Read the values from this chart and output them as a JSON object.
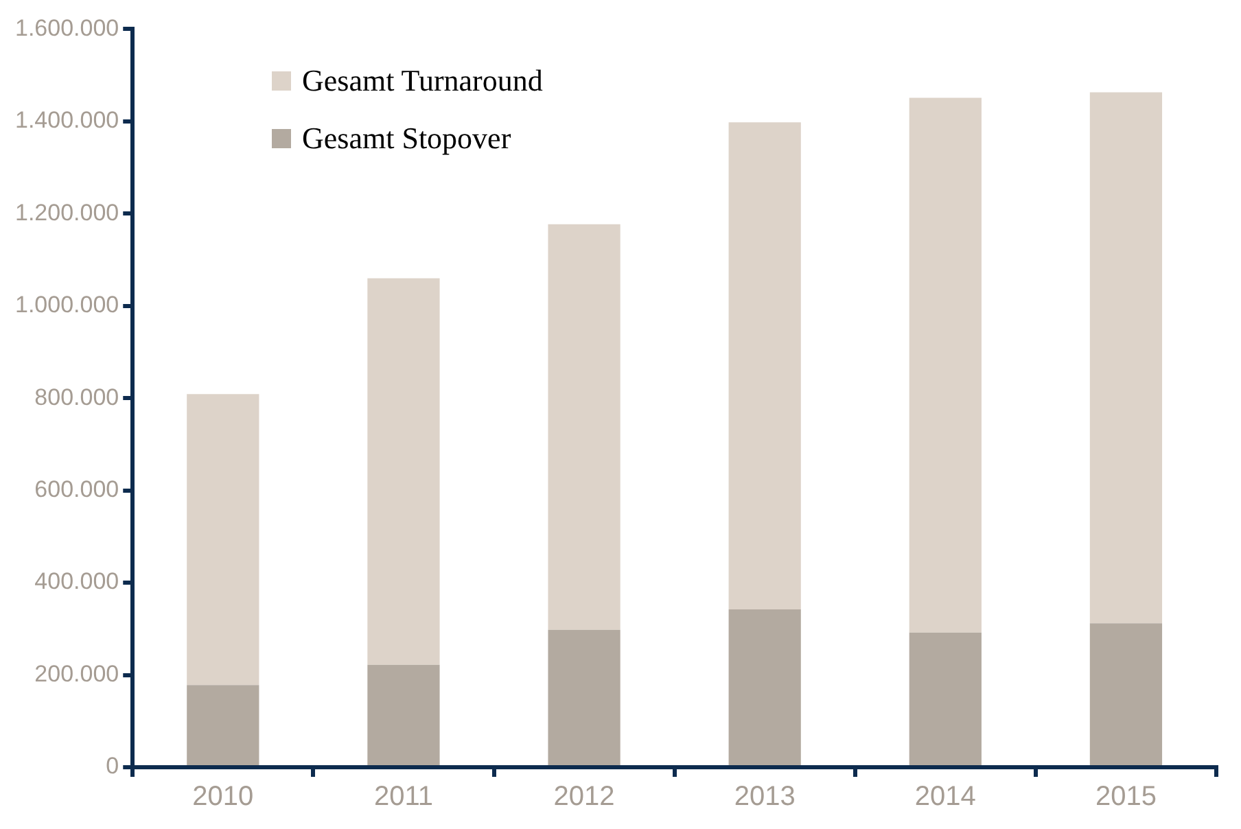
{
  "chart_data": {
    "type": "bar",
    "stacked": true,
    "categories": [
      "2010",
      "2011",
      "2012",
      "2013",
      "2014",
      "2015"
    ],
    "series": [
      {
        "name": "Gesamt Stopover",
        "color": "#b3aaa0",
        "values": [
          178000,
          222000,
          298000,
          342000,
          292000,
          312000
        ]
      },
      {
        "name": "Gesamt Turnaround",
        "color": "#ddd3c9",
        "values": [
          631000,
          838000,
          879000,
          1056000,
          1159000,
          1151000
        ]
      }
    ],
    "ylim": [
      0,
      1600000
    ],
    "yticks": [
      {
        "value": 0,
        "label": "0"
      },
      {
        "value": 200000,
        "label": "200.000"
      },
      {
        "value": 400000,
        "label": "400.000"
      },
      {
        "value": 600000,
        "label": "600.000"
      },
      {
        "value": 800000,
        "label": "800.000"
      },
      {
        "value": 1000000,
        "label": "1.000.000"
      },
      {
        "value": 1200000,
        "label": "1.200.000"
      },
      {
        "value": 1400000,
        "label": "1.400.000"
      },
      {
        "value": 1600000,
        "label": "1.600.000"
      }
    ],
    "grid": false,
    "legend": "top left"
  }
}
